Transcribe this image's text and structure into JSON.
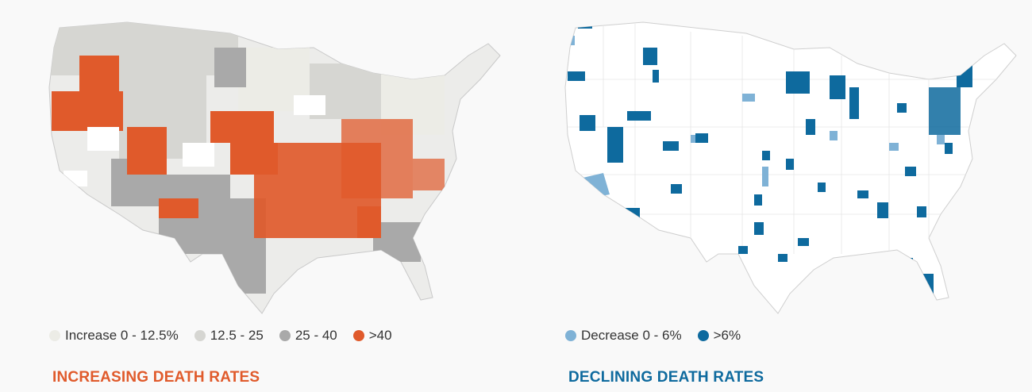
{
  "colors": {
    "background": "#f9f9f9",
    "county_base": "#ececea",
    "map_outline": "#c9c9c9",
    "increase_0_12_5": "#ecece6",
    "increase_12_5_25": "#d6d6d2",
    "increase_25_40": "#a9a9a9",
    "increase_over_40": "#e05a2b",
    "decrease_0_6": "#7fb2d6",
    "decrease_over_6": "#0e6a9e",
    "declining_base": "#ffffff"
  },
  "increasing": {
    "title": "INCREASING DEATH RATES",
    "title_color": "#e05a2b",
    "legend": [
      {
        "label": "Increase 0 - 12.5%",
        "color": "#ecece6"
      },
      {
        "label": "12.5 - 25",
        "color": "#d6d6d2"
      },
      {
        "label": "25 - 40",
        "color": "#a9a9a9"
      },
      {
        "label": ">40",
        "color": "#e05a2b"
      }
    ]
  },
  "declining": {
    "title": "DECLINING DEATH RATES",
    "title_color": "#0e6a9e",
    "legend": [
      {
        "label": "Decrease 0 - 6%",
        "color": "#7fb2d6"
      },
      {
        "label": ">6%",
        "color": "#0e6a9e"
      }
    ]
  }
}
